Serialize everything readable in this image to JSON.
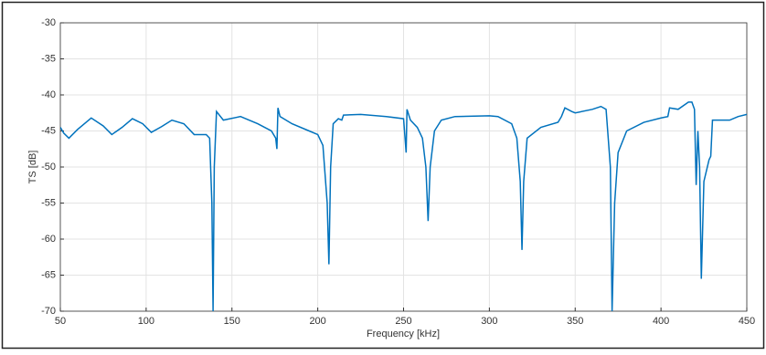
{
  "chart_data": {
    "type": "line",
    "xlabel": "Frequency [kHz]",
    "ylabel": "TS [dB]",
    "x": [
      50,
      52,
      55,
      60,
      68,
      75,
      80,
      86,
      92,
      98,
      103,
      109,
      115,
      122,
      128,
      135,
      137,
      138.3,
      139,
      139.7,
      141,
      145,
      155,
      165,
      173,
      175.5,
      176.2,
      176.8,
      178,
      185,
      195,
      200,
      203,
      205.5,
      206.5,
      207.5,
      209,
      212,
      214,
      215,
      225,
      240,
      250,
      251.5,
      252,
      254,
      258,
      261,
      263,
      264.3,
      265.5,
      268,
      272,
      280,
      300,
      305,
      313,
      316,
      318,
      319,
      320,
      322,
      330,
      340,
      342,
      344,
      348,
      350,
      360,
      365,
      368,
      370.5,
      371.5,
      373,
      375,
      380,
      390,
      400,
      404,
      405,
      410,
      416,
      418,
      419.5,
      420.5,
      421.5,
      422.5,
      423.5,
      425,
      428,
      429,
      430,
      435,
      440,
      445,
      450
    ],
    "values": [
      -44.5,
      -45.3,
      -46,
      -44.8,
      -43.2,
      -44.3,
      -45.5,
      -44.5,
      -43.3,
      -44,
      -45.2,
      -44.4,
      -43.5,
      -44,
      -45.5,
      -45.5,
      -46,
      -55,
      -70,
      -50,
      -42.3,
      -43.5,
      -43,
      -44,
      -45,
      -46,
      -47.5,
      -41.8,
      -43,
      -44,
      -45,
      -45.5,
      -47,
      -55,
      -63.5,
      -50,
      -44,
      -43.3,
      -43.5,
      -42.8,
      -42.7,
      -43,
      -43.3,
      -48,
      -42,
      -43.5,
      -44.5,
      -46,
      -50,
      -57.5,
      -50,
      -45,
      -43.5,
      -43,
      -42.9,
      -43,
      -44,
      -46,
      -52,
      -61.5,
      -52,
      -46,
      -44.5,
      -43.8,
      -43,
      -41.8,
      -42.3,
      -42.5,
      -42,
      -41.6,
      -42,
      -50,
      -70,
      -55,
      -48,
      -45,
      -43.8,
      -43.2,
      -43,
      -41.8,
      -42,
      -41,
      -41,
      -42,
      -52.5,
      -45,
      -50,
      -65.5,
      -52,
      -49,
      -48.5,
      -43.5,
      -43.5,
      -43.5,
      -43,
      -42.7
    ],
    "color": "#0072bd",
    "xlim": [
      50,
      450
    ],
    "xticks": [
      50,
      100,
      150,
      200,
      250,
      300,
      350,
      400,
      450
    ],
    "ylim": [
      -70,
      -30
    ],
    "yticks": [
      -30,
      -35,
      -40,
      -45,
      -50,
      -55,
      -60,
      -65,
      -70
    ],
    "grid": true
  }
}
